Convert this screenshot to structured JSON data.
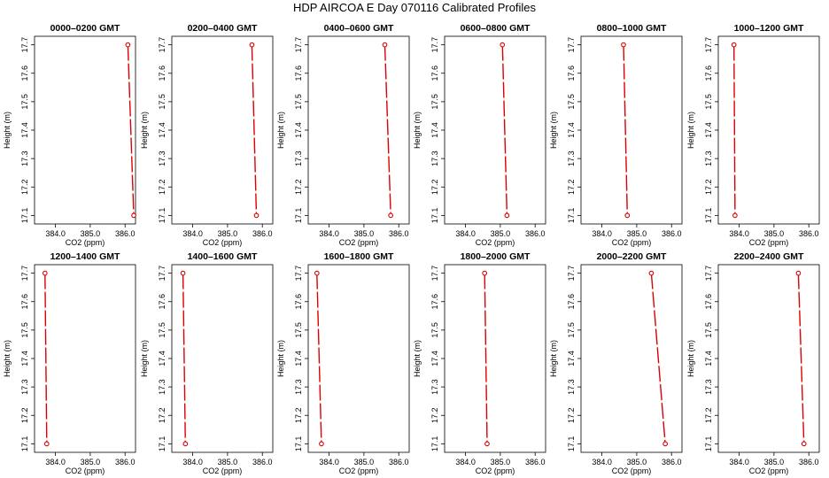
{
  "figure": {
    "title": "HDP  AIRCOA E  Day 070116  Calibrated Profiles"
  },
  "chart_data": {
    "type": "line",
    "xlabel": "CO2 (ppm)",
    "ylabel": "Height (m)",
    "xlim": [
      383.4,
      386.3
    ],
    "ylim": [
      17.07,
      17.73
    ],
    "xticks": [
      "384.0",
      "385.0",
      "386.0"
    ],
    "yticks": [
      "17.1",
      "17.2",
      "17.3",
      "17.4",
      "17.5",
      "17.6",
      "17.7"
    ],
    "xtick_values": [
      384.0,
      385.0,
      386.0
    ],
    "ytick_values": [
      17.1,
      17.2,
      17.3,
      17.4,
      17.5,
      17.6,
      17.7
    ],
    "line_color": "#dd0000",
    "marker_color": "#dd0000",
    "panels": [
      {
        "title": "0000–0200 GMT",
        "x": [
          386.08,
          386.25
        ],
        "y": [
          17.7,
          17.1
        ]
      },
      {
        "title": "0200–0400 GMT",
        "x": [
          385.7,
          385.83
        ],
        "y": [
          17.7,
          17.1
        ]
      },
      {
        "title": "0400–0600 GMT",
        "x": [
          385.6,
          385.77
        ],
        "y": [
          17.7,
          17.1
        ]
      },
      {
        "title": "0600–0800 GMT",
        "x": [
          385.06,
          385.19
        ],
        "y": [
          17.7,
          17.1
        ]
      },
      {
        "title": "0800–1000 GMT",
        "x": [
          384.62,
          384.73
        ],
        "y": [
          17.7,
          17.1
        ]
      },
      {
        "title": "1000–1200 GMT",
        "x": [
          383.85,
          383.88
        ],
        "y": [
          17.7,
          17.1
        ]
      },
      {
        "title": "1200–1400 GMT",
        "x": [
          383.7,
          383.75
        ],
        "y": [
          17.7,
          17.1
        ]
      },
      {
        "title": "1400–1600 GMT",
        "x": [
          383.72,
          383.79
        ],
        "y": [
          17.7,
          17.1
        ]
      },
      {
        "title": "1600–1800 GMT",
        "x": [
          383.65,
          383.78
        ],
        "y": [
          17.7,
          17.1
        ]
      },
      {
        "title": "1800–2000 GMT",
        "x": [
          384.55,
          384.62
        ],
        "y": [
          17.7,
          17.1
        ]
      },
      {
        "title": "2000–2200 GMT",
        "x": [
          385.42,
          385.82
        ],
        "y": [
          17.7,
          17.1
        ]
      },
      {
        "title": "2200–2400 GMT",
        "x": [
          385.7,
          385.86
        ],
        "y": [
          17.7,
          17.1
        ]
      }
    ]
  }
}
